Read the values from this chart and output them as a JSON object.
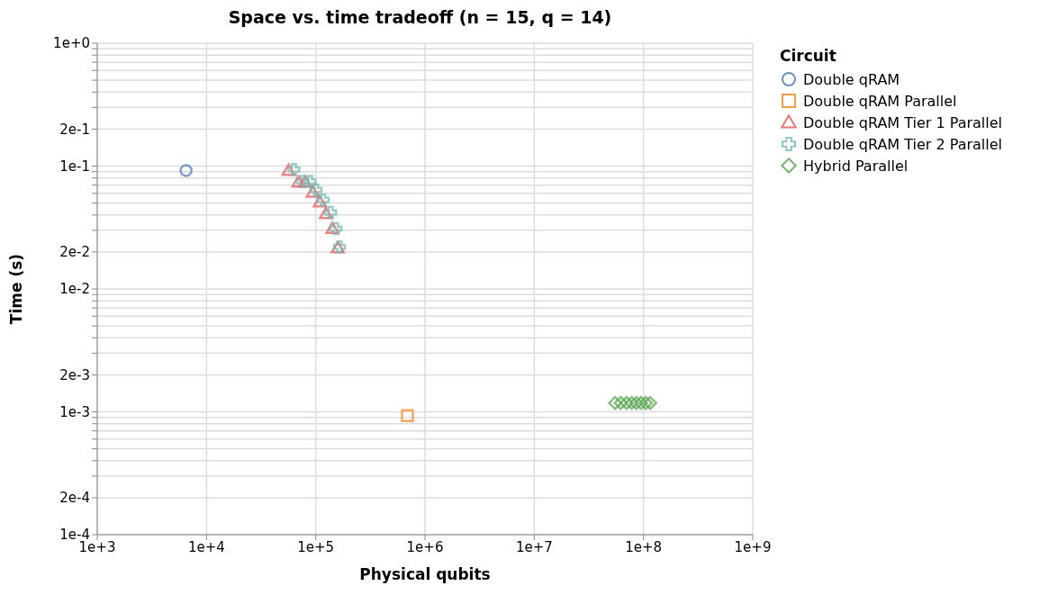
{
  "chart_data": {
    "type": "scatter",
    "title": "Space vs. time tradeoff (n = 15, q = 14)",
    "xlabel": "Physical qubits",
    "ylabel": "Time (s)",
    "legend_title": "Circuit",
    "legend": "right",
    "log": "xy",
    "grid": true,
    "xlim": [
      1000,
      1000000000
    ],
    "xticks": [
      {
        "value": 1000,
        "label": "1e+3"
      },
      {
        "value": 10000,
        "label": "1e+4"
      },
      {
        "value": 100000,
        "label": "1e+5"
      },
      {
        "value": 1000000,
        "label": "1e+6"
      },
      {
        "value": 10000000,
        "label": "1e+7"
      },
      {
        "value": 100000000,
        "label": "1e+8"
      },
      {
        "value": 1000000000,
        "label": "1e+9"
      }
    ],
    "ylim": [
      0.0001,
      1
    ],
    "yticks": [
      {
        "value": 0.0001,
        "label": "1e-4"
      },
      {
        "value": 0.0002,
        "label": "2e-4"
      },
      {
        "value": 0.0003,
        "label": null
      },
      {
        "value": 0.0004,
        "label": null
      },
      {
        "value": 0.0005,
        "label": null
      },
      {
        "value": 0.0006,
        "label": null
      },
      {
        "value": 0.0007,
        "label": null
      },
      {
        "value": 0.0008,
        "label": null
      },
      {
        "value": 0.0009,
        "label": null
      },
      {
        "value": 0.001,
        "label": "1e-3"
      },
      {
        "value": 0.002,
        "label": "2e-3"
      },
      {
        "value": 0.003,
        "label": null
      },
      {
        "value": 0.004,
        "label": null
      },
      {
        "value": 0.005,
        "label": null
      },
      {
        "value": 0.006,
        "label": null
      },
      {
        "value": 0.007,
        "label": null
      },
      {
        "value": 0.008,
        "label": null
      },
      {
        "value": 0.009,
        "label": null
      },
      {
        "value": 0.01,
        "label": "1e-2"
      },
      {
        "value": 0.02,
        "label": "2e-2"
      },
      {
        "value": 0.03,
        "label": null
      },
      {
        "value": 0.04,
        "label": null
      },
      {
        "value": 0.05,
        "label": null
      },
      {
        "value": 0.06,
        "label": null
      },
      {
        "value": 0.07,
        "label": null
      },
      {
        "value": 0.08,
        "label": null
      },
      {
        "value": 0.09,
        "label": null
      },
      {
        "value": 0.1,
        "label": "1e-1"
      },
      {
        "value": 0.2,
        "label": "2e-1"
      },
      {
        "value": 0.3,
        "label": null
      },
      {
        "value": 0.4,
        "label": null
      },
      {
        "value": 0.5,
        "label": null
      },
      {
        "value": 0.6,
        "label": null
      },
      {
        "value": 0.7,
        "label": null
      },
      {
        "value": 0.8,
        "label": null
      },
      {
        "value": 0.9,
        "label": null
      },
      {
        "value": 1,
        "label": "1e+0"
      }
    ],
    "series": [
      {
        "name": "Double qRAM",
        "color": "#4c78a8",
        "marker": "circle",
        "x": [
          6500
        ],
        "values": [
          0.092
        ]
      },
      {
        "name": "Double qRAM Parallel",
        "color": "#f58518",
        "marker": "square",
        "x": [
          690000
        ],
        "values": [
          0.00093
        ]
      },
      {
        "name": "Double qRAM Tier 1 Parallel",
        "color": "#e45756",
        "marker": "triangle",
        "x": [
          56400,
          69300,
          80000,
          93800,
          109000,
          124000,
          142000,
          159000
        ],
        "values": [
          0.092,
          0.074,
          0.074,
          0.061,
          0.051,
          0.041,
          0.031,
          0.0216
        ]
      },
      {
        "name": "Double qRAM Tier 2 Parallel",
        "color": "#72b7b2",
        "marker": "cross",
        "x": [
          63100,
          76200,
          88700,
          101000,
          117000,
          137000,
          153000,
          165000
        ],
        "values": [
          0.094,
          0.075,
          0.075,
          0.064,
          0.053,
          0.042,
          0.031,
          0.022
        ]
      },
      {
        "name": "Hybrid Parallel",
        "color": "#54a24b",
        "marker": "diamond",
        "x": [
          55000000,
          62000000,
          70000000,
          78000000,
          86000000,
          95000000,
          105000000,
          115000000
        ],
        "values": [
          0.00118,
          0.00118,
          0.00118,
          0.00118,
          0.00118,
          0.00118,
          0.00118,
          0.00118
        ]
      }
    ]
  }
}
